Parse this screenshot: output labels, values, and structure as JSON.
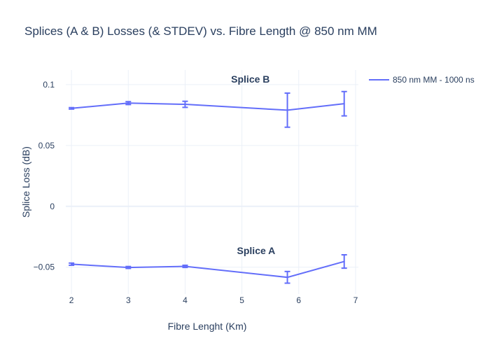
{
  "chart_data": {
    "type": "line",
    "title": "Splices (A & B) Losses (& STDEV) vs. Fibre Length  @ 850 nm MM",
    "xlabel": "Fibre Lenght (Km)",
    "ylabel": "Splice Loss (dB)",
    "xlim": [
      1.9,
      7.05
    ],
    "ylim": [
      -0.072,
      0.112
    ],
    "xticks": [
      2,
      3,
      4,
      5,
      6,
      7
    ],
    "yticks": [
      -0.05,
      0,
      0.05,
      0.1
    ],
    "ytick_labels": [
      "−0.05",
      "0",
      "0.05",
      "0.1"
    ],
    "grid": true,
    "legend_position": "top-right",
    "series_color": "#636efa",
    "series": [
      {
        "name": "850 nm MM - 1000 ns",
        "segments": [
          {
            "x": [
              2,
              3,
              4,
              5.8,
              6.8
            ],
            "y": [
              0.0805,
              0.0848,
              0.0838,
              0.079,
              0.0843
            ],
            "error": [
              0.0006,
              0.0012,
              0.0025,
              0.014,
              0.01
            ]
          },
          {
            "x": [
              2,
              3,
              4,
              5.8,
              6.8
            ],
            "y": [
              -0.0475,
              -0.0502,
              -0.0493,
              -0.0583,
              -0.0453
            ],
            "error": [
              0.0009,
              0.0008,
              0.0009,
              0.0048,
              0.0055
            ]
          }
        ]
      }
    ],
    "annotations": [
      {
        "text": "Splice B",
        "x": 5.15,
        "y": 0.1045
      },
      {
        "text": "Splice A",
        "x": 5.25,
        "y": -0.0363
      }
    ]
  }
}
